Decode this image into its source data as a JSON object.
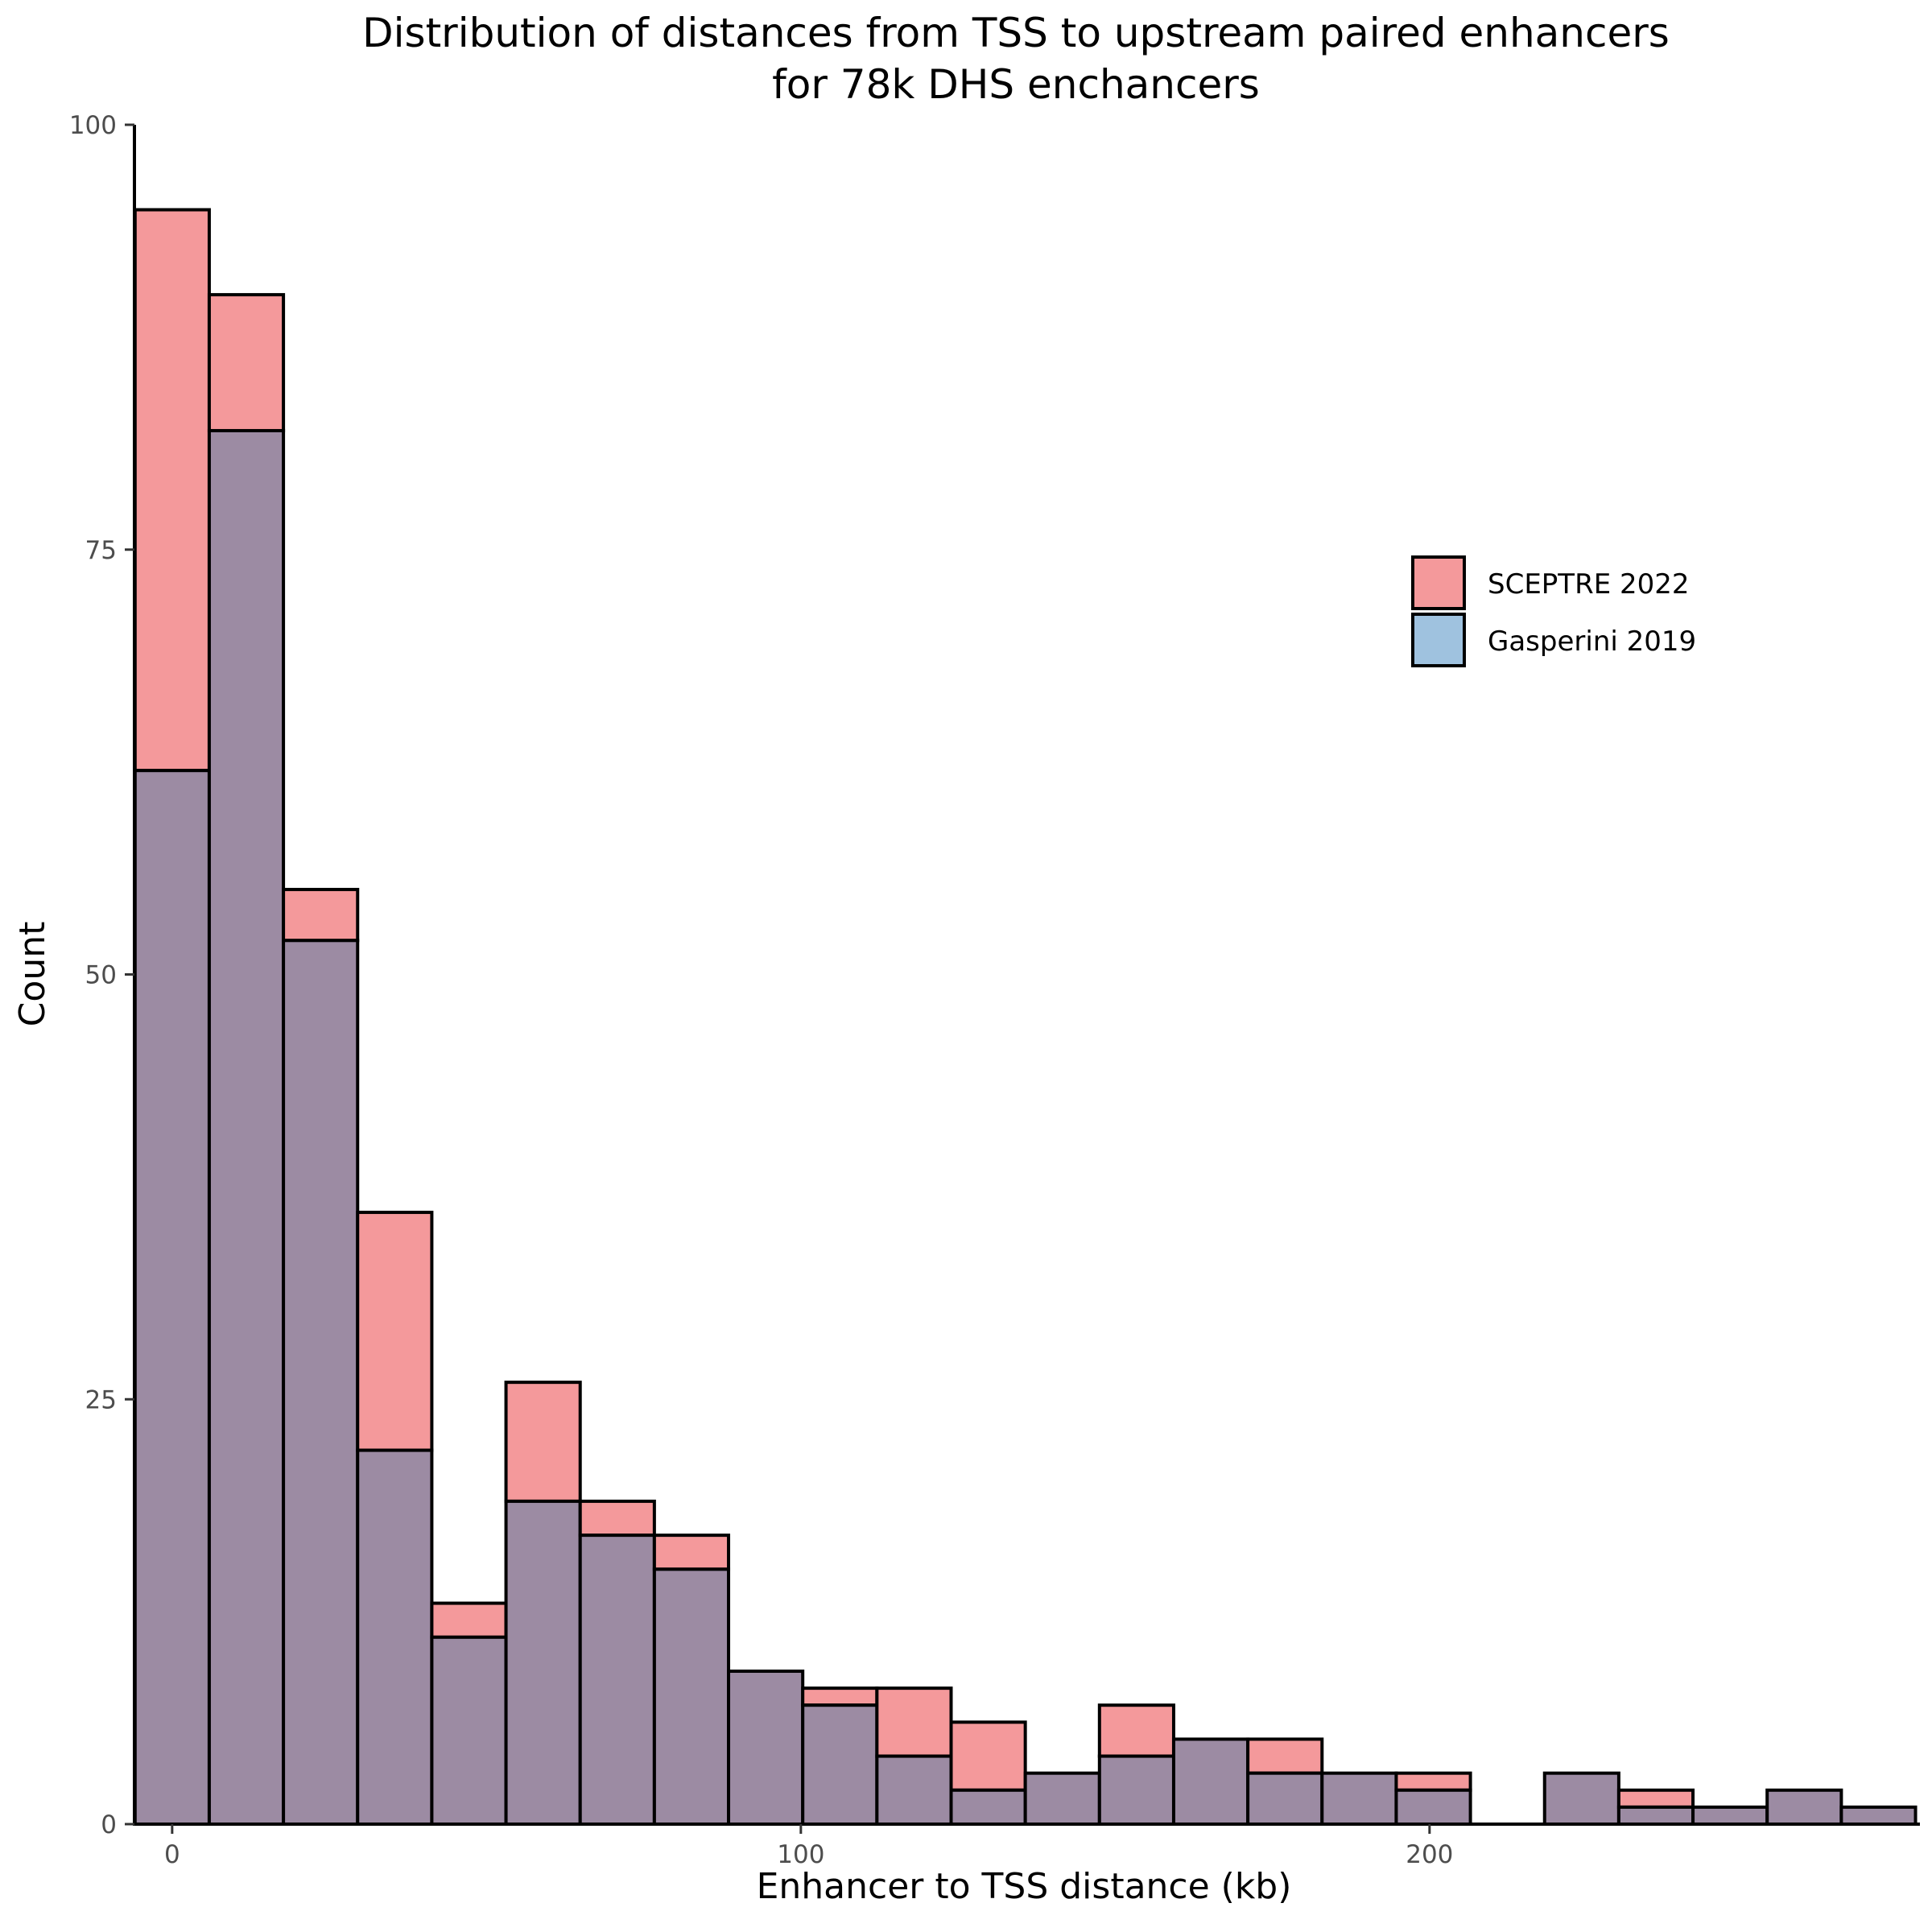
{
  "chart_data": {
    "type": "bar",
    "title": "Distribution of distances from TSS to upstream paired enhancers",
    "subtitle": "for 78k DHS enchancers",
    "xlabel": "Enhancer to TSS distance (kb)",
    "ylabel": "Count",
    "xlim": [
      -6,
      278
    ],
    "ylim": [
      0,
      100
    ],
    "x_ticks": [
      0,
      100,
      200
    ],
    "y_ticks": [
      0,
      25,
      50,
      75,
      100
    ],
    "bin_width": 11.8,
    "bin_start": -5.9,
    "legend_position": "right",
    "series": [
      {
        "name": "SCEPTRE 2022",
        "color": "#F4999B",
        "values": [
          95,
          90,
          55,
          36,
          13,
          26,
          19,
          17,
          9,
          8,
          8,
          6,
          3,
          7,
          5,
          5,
          3,
          3,
          0,
          3,
          2,
          1,
          2,
          1
        ]
      },
      {
        "name": "Gasperini 2019",
        "color": "#9FC2DF",
        "values": [
          62,
          82,
          52,
          22,
          11,
          19,
          17,
          15,
          9,
          7,
          4,
          2,
          3,
          4,
          5,
          3,
          3,
          2,
          0,
          3,
          1,
          1,
          2,
          1
        ]
      }
    ],
    "overlap_color": "#9C8BA3",
    "grid": false
  }
}
